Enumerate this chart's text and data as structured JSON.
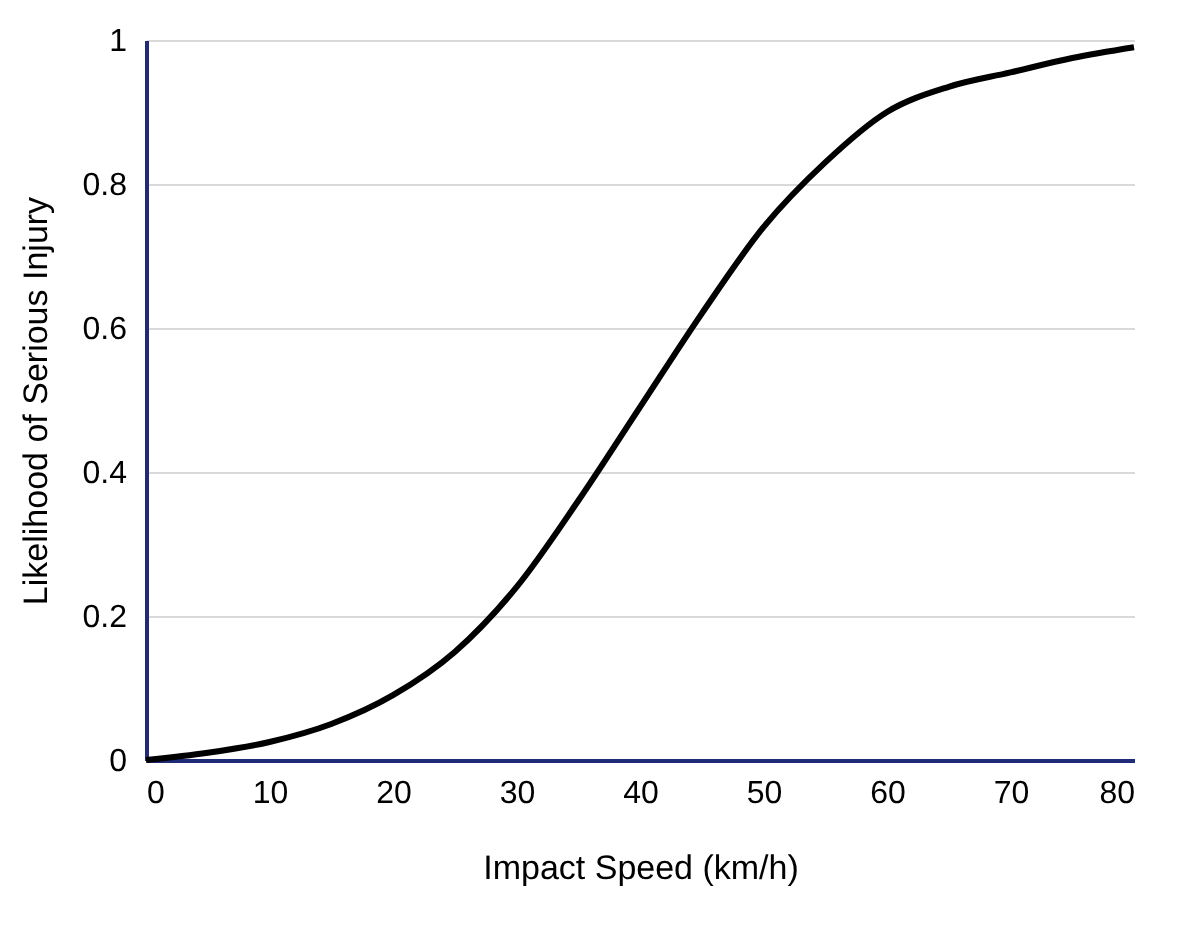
{
  "chart_data": {
    "type": "line",
    "xlabel": "Impact Speed (km/h)",
    "ylabel": "Likelihood of Serious Injury",
    "x": [
      0,
      5,
      10,
      15,
      20,
      25,
      30,
      35,
      40,
      45,
      50,
      55,
      60,
      65,
      70,
      75,
      80
    ],
    "series": [
      {
        "color": "#000000",
        "values": [
          0,
          0.01,
          0.025,
          0.05,
          0.09,
          0.15,
          0.24,
          0.36,
          0.49,
          0.62,
          0.74,
          0.83,
          0.9,
          0.935,
          0.955,
          0.975,
          0.99
        ]
      }
    ],
    "xlim": [
      0,
      80
    ],
    "xticks": [
      0,
      10,
      20,
      30,
      40,
      50,
      60,
      70,
      80
    ],
    "ylim": [
      0,
      1
    ],
    "yticks": [
      0,
      0.2,
      0.4,
      0.6,
      0.8,
      1
    ],
    "grid": "y",
    "legend": false,
    "marker": "none",
    "line_style": "solid"
  }
}
